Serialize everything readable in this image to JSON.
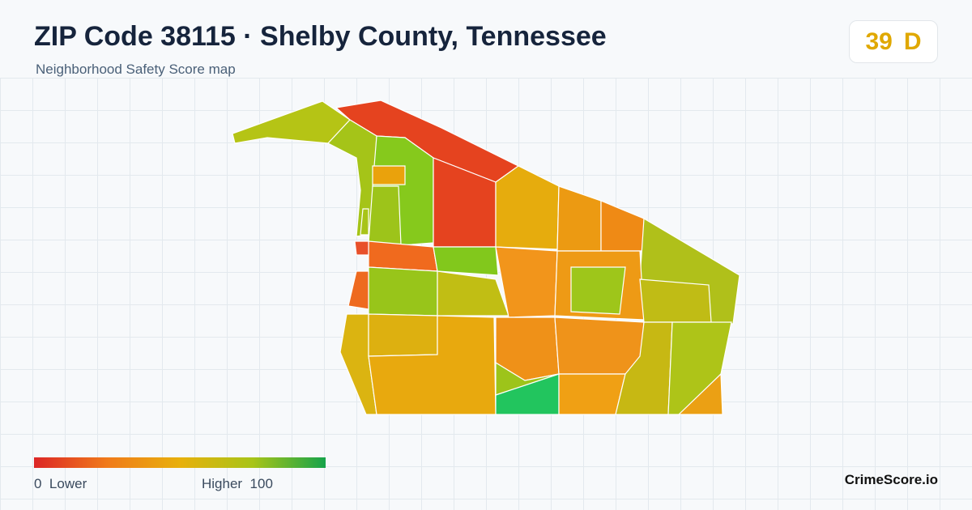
{
  "header": {
    "title": "ZIP Code 38115 · Shelby County, Tennessee",
    "subtitle": "Neighborhood Safety Score map"
  },
  "score": {
    "value": 39,
    "grade": "D"
  },
  "legend": {
    "min": 0,
    "min_label": "Lower",
    "max_label": "Higher",
    "max": 100
  },
  "brand": "CrimeScore.io"
}
